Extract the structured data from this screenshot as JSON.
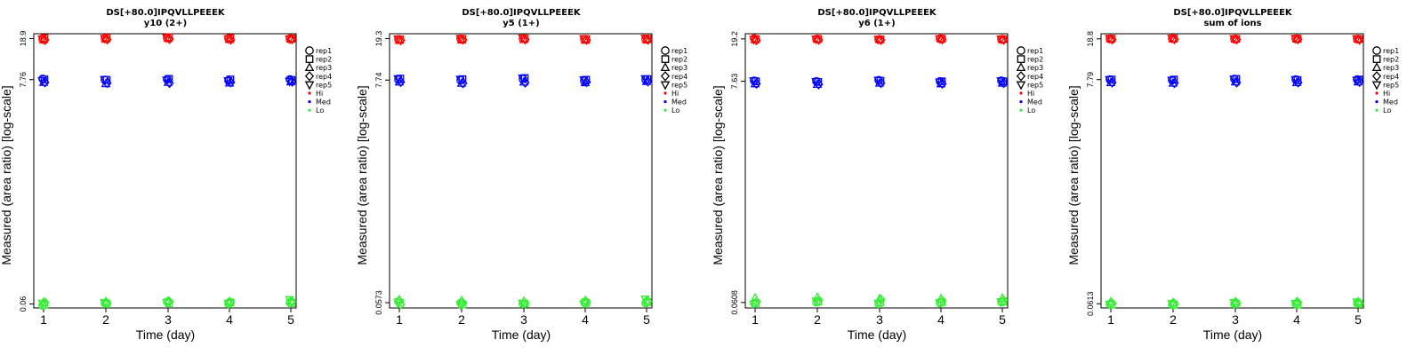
{
  "chart_data": [
    {
      "type": "scatter",
      "title": "DS[+80.0]IPQVLLPEEEK",
      "subtitle": "y10 (2+)",
      "xlabel": "Time (day)",
      "ylabel": "Measured (area ratio) [log-scale]",
      "x": [
        1,
        2,
        3,
        4,
        5
      ],
      "y_ticks": [
        "18.9",
        "7.76",
        "0.06"
      ],
      "ylim_log": [
        "0.055",
        "21"
      ],
      "legend": [
        "rep1",
        "rep2",
        "rep3",
        "rep4",
        "rep5",
        "Hi",
        "Med",
        "Lo"
      ],
      "series": [
        {
          "name": "Hi",
          "color": "#ff0000",
          "reps": [
            [
              18.6,
              19.1,
              18.4,
              18.3,
              18.8
            ],
            [
              18.9,
              19.3,
              18.6,
              18.5,
              19.0
            ],
            [
              19.2,
              19.5,
              18.9,
              18.7,
              19.3
            ],
            [
              18.8,
              19.2,
              18.5,
              18.4,
              18.9
            ],
            [
              18.7,
              19.0,
              18.7,
              18.6,
              18.8
            ]
          ]
        },
        {
          "name": "Med",
          "color": "#0000ff",
          "reps": [
            [
              7.9,
              7.8,
              7.3,
              7.3,
              7.6
            ],
            [
              7.7,
              7.7,
              7.1,
              7.2,
              7.8
            ],
            [
              7.8,
              7.9,
              7.3,
              7.2,
              7.7
            ],
            [
              7.6,
              7.8,
              7.2,
              7.3,
              7.6
            ],
            [
              7.8,
              7.7,
              7.4,
              7.4,
              7.5
            ]
          ]
        },
        {
          "name": "Lo",
          "color": "#33ee33",
          "reps": [
            [
              0.058,
              0.059,
              0.062,
              0.062,
              0.061
            ],
            [
              0.061,
              0.06,
              0.063,
              0.061,
              0.062
            ],
            [
              0.063,
              0.061,
              0.064,
              0.063,
              0.062
            ],
            [
              0.06,
              0.062,
              0.063,
              0.062,
              0.061
            ],
            [
              0.062,
              0.061,
              0.064,
              0.063,
              0.066
            ]
          ]
        }
      ]
    },
    {
      "type": "scatter",
      "title": "DS[+80.0]IPQVLLPEEEK",
      "subtitle": "y5 (1+)",
      "xlabel": "Time (day)",
      "ylabel": "Measured (area ratio) [log-scale]",
      "x": [
        1,
        2,
        3,
        4,
        5
      ],
      "y_ticks": [
        "19.3",
        "7.74",
        "0.0573"
      ],
      "ylim_log": [
        "0.051",
        "21.5"
      ],
      "legend": [
        "rep1",
        "rep2",
        "rep3",
        "rep4",
        "rep5",
        "Hi",
        "Med",
        "Lo"
      ],
      "series": [
        {
          "name": "Hi",
          "color": "#ff0000",
          "reps": [
            [
              19.0,
              19.0,
              18.5,
              18.6,
              19.2
            ],
            [
              19.2,
              19.2,
              18.7,
              18.8,
              19.4
            ],
            [
              19.3,
              19.4,
              18.9,
              18.9,
              19.6
            ],
            [
              19.1,
              19.1,
              18.6,
              18.7,
              19.3
            ],
            [
              19.0,
              19.3,
              18.8,
              18.8,
              19.5
            ]
          ]
        },
        {
          "name": "Med",
          "color": "#0000ff",
          "reps": [
            [
              7.8,
              8.0,
              7.4,
              7.4,
              8.0
            ],
            [
              7.7,
              7.9,
              7.2,
              7.2,
              7.9
            ],
            [
              7.9,
              8.1,
              7.4,
              7.3,
              8.1
            ],
            [
              7.6,
              7.8,
              7.3,
              7.4,
              7.8
            ],
            [
              7.8,
              7.9,
              7.5,
              7.5,
              8.0
            ]
          ]
        },
        {
          "name": "Lo",
          "color": "#33ee33",
          "reps": [
            [
              0.059,
              0.057,
              0.061,
              0.055,
              0.058
            ],
            [
              0.057,
              0.055,
              0.06,
              0.057,
              0.055
            ],
            [
              0.056,
              0.056,
              0.059,
              0.056,
              0.057
            ],
            [
              0.058,
              0.057,
              0.06,
              0.058,
              0.056
            ],
            [
              0.057,
              0.058,
              0.06,
              0.059,
              0.062
            ]
          ]
        }
      ]
    },
    {
      "type": "scatter",
      "title": "DS[+80.0]IPQVLLPEEEK",
      "subtitle": "y6 (1+)",
      "xlabel": "Time (day)",
      "ylabel": "Measured (area ratio) [log-scale]",
      "x": [
        1,
        2,
        3,
        4,
        5
      ],
      "y_ticks": [
        "19.2",
        "7.63",
        "0.0608"
      ],
      "ylim_log": [
        "0.054",
        "21.5"
      ],
      "legend": [
        "rep1",
        "rep2",
        "rep3",
        "rep4",
        "rep5",
        "Hi",
        "Med",
        "Lo"
      ],
      "series": [
        {
          "name": "Hi",
          "color": "#ff0000",
          "reps": [
            [
              19.4,
              19.1,
              18.8,
              18.6,
              19.0
            ],
            [
              19.1,
              19.2,
              19.0,
              18.8,
              19.2
            ],
            [
              18.9,
              19.0,
              18.9,
              18.7,
              19.1
            ],
            [
              19.3,
              19.3,
              19.2,
              18.9,
              19.3
            ],
            [
              19.0,
              19.1,
              18.9,
              18.8,
              19.2
            ]
          ]
        },
        {
          "name": "Med",
          "color": "#0000ff",
          "reps": [
            [
              7.7,
              7.6,
              7.2,
              7.2,
              7.7
            ],
            [
              7.6,
              7.5,
              7.1,
              7.1,
              7.6
            ],
            [
              7.8,
              7.7,
              7.3,
              7.3,
              7.8
            ],
            [
              7.6,
              7.6,
              7.2,
              7.2,
              7.5
            ],
            [
              7.7,
              7.6,
              7.3,
              7.3,
              7.7
            ]
          ]
        },
        {
          "name": "Lo",
          "color": "#33ee33",
          "reps": [
            [
              0.06,
              0.06,
              0.067,
              0.062,
              0.059
            ],
            [
              0.061,
              0.062,
              0.068,
              0.064,
              0.063
            ],
            [
              0.059,
              0.061,
              0.066,
              0.065,
              0.06
            ],
            [
              0.06,
              0.061,
              0.066,
              0.063,
              0.061
            ],
            [
              0.061,
              0.062,
              0.067,
              0.064,
              0.062
            ]
          ]
        }
      ]
    },
    {
      "type": "scatter",
      "title": "DS[+80.0]IPQVLLPEEEK",
      "subtitle": "sum of ions",
      "xlabel": "Time (day)",
      "ylabel": "Measured (area ratio) [log-scale]",
      "x": [
        1,
        2,
        3,
        4,
        5
      ],
      "y_ticks": [
        "18.8",
        "7.79",
        "0.0613"
      ],
      "ylim_log": [
        "0.056",
        "21"
      ],
      "legend": [
        "rep1",
        "rep2",
        "rep3",
        "rep4",
        "rep5",
        "Hi",
        "Med",
        "Lo"
      ],
      "series": [
        {
          "name": "Hi",
          "color": "#ff0000",
          "reps": [
            [
              18.8,
              18.9,
              18.6,
              18.5,
              19.0
            ],
            [
              18.9,
              19.0,
              18.7,
              18.6,
              19.1
            ],
            [
              18.7,
              18.8,
              18.6,
              18.5,
              18.9
            ],
            [
              18.8,
              18.9,
              18.7,
              18.6,
              19.0
            ],
            [
              18.7,
              18.8,
              18.6,
              18.4,
              18.9
            ]
          ]
        },
        {
          "name": "Med",
          "color": "#0000ff",
          "reps": [
            [
              7.8,
              7.8,
              7.3,
              7.3,
              7.8
            ],
            [
              7.7,
              7.8,
              7.2,
              7.2,
              7.7
            ],
            [
              7.9,
              7.9,
              7.4,
              7.3,
              7.9
            ],
            [
              7.8,
              7.7,
              7.3,
              7.3,
              7.8
            ],
            [
              7.8,
              7.8,
              7.4,
              7.4,
              7.7
            ]
          ]
        },
        {
          "name": "Lo",
          "color": "#33ee33",
          "reps": [
            [
              0.061,
              0.06,
              0.064,
              0.062,
              0.061
            ],
            [
              0.06,
              0.06,
              0.063,
              0.061,
              0.062
            ],
            [
              0.061,
              0.061,
              0.064,
              0.062,
              0.063
            ],
            [
              0.061,
              0.06,
              0.064,
              0.063,
              0.062
            ],
            [
              0.062,
              0.061,
              0.064,
              0.062,
              0.064
            ]
          ]
        }
      ]
    }
  ]
}
